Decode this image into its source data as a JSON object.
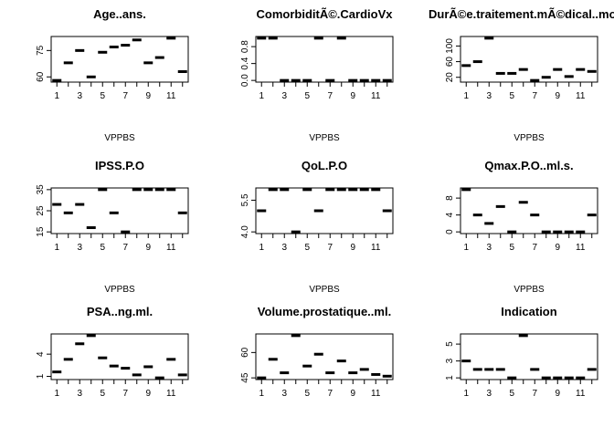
{
  "chart_data": [
    {
      "type": "scatter",
      "title": "Age..ans.",
      "xlabel": "VPPBS",
      "ylabel": "",
      "x": [
        1,
        2,
        3,
        4,
        5,
        6,
        7,
        8,
        9,
        10,
        11,
        12
      ],
      "values": [
        58,
        68,
        75,
        60,
        74,
        77,
        78,
        81,
        68,
        71,
        82,
        63
      ],
      "xlim": [
        0.5,
        12.5
      ],
      "ylim": [
        58,
        82
      ],
      "xticks": [
        1,
        3,
        5,
        7,
        9,
        11
      ],
      "yticks": [
        60,
        75
      ]
    },
    {
      "type": "scatter",
      "title": "ComorbiditÃ©.CardioVx",
      "xlabel": "VPPBS",
      "ylabel": "",
      "x": [
        1,
        2,
        3,
        4,
        5,
        6,
        7,
        8,
        9,
        10,
        11,
        12
      ],
      "values": [
        1,
        1,
        0,
        0,
        0,
        1,
        0,
        1,
        0,
        0,
        0,
        0
      ],
      "xlim": [
        0.5,
        12.5
      ],
      "ylim": [
        0,
        1
      ],
      "xticks": [
        1,
        3,
        5,
        7,
        9,
        11
      ],
      "yticks": [
        0.0,
        0.4,
        0.8
      ]
    },
    {
      "type": "scatter",
      "title": "DurÃ©e.traitement.mÃ©dical..mois.",
      "xlabel": "VPPBS",
      "ylabel": "",
      "x": [
        1,
        2,
        3,
        4,
        5,
        6,
        7,
        8,
        9,
        10,
        11,
        12
      ],
      "values": [
        50,
        60,
        120,
        30,
        30,
        40,
        12,
        20,
        40,
        22,
        40,
        35
      ],
      "xlim": [
        0.5,
        12.5
      ],
      "ylim": [
        12,
        120
      ],
      "xticks": [
        1,
        3,
        5,
        7,
        9,
        11
      ],
      "yticks": [
        20,
        60,
        100
      ]
    },
    {
      "type": "scatter",
      "title": "IPSS.P.O",
      "xlabel": "VPPBS",
      "ylabel": "",
      "x": [
        1,
        2,
        3,
        4,
        5,
        6,
        7,
        8,
        9,
        10,
        11,
        12
      ],
      "values": [
        28,
        24,
        28,
        17,
        35,
        24,
        15,
        35,
        35,
        35,
        35,
        24
      ],
      "xlim": [
        0.5,
        12.5
      ],
      "ylim": [
        15,
        35
      ],
      "xticks": [
        1,
        3,
        5,
        7,
        9,
        11
      ],
      "yticks": [
        15,
        25,
        35
      ]
    },
    {
      "type": "scatter",
      "title": "QoL.P.O",
      "xlabel": "VPPBS",
      "ylabel": "",
      "x": [
        1,
        2,
        3,
        4,
        5,
        6,
        7,
        8,
        9,
        10,
        11,
        12
      ],
      "values": [
        5,
        6,
        6,
        4,
        6,
        5,
        6,
        6,
        6,
        6,
        6,
        5
      ],
      "xlim": [
        0.5,
        12.5
      ],
      "ylim": [
        4,
        6
      ],
      "xticks": [
        1,
        3,
        5,
        7,
        9,
        11
      ],
      "yticks": [
        4.0,
        5.5
      ]
    },
    {
      "type": "scatter",
      "title": "Qmax.P.O..ml.s.",
      "xlabel": "VPPBS",
      "ylabel": "",
      "x": [
        1,
        2,
        3,
        4,
        5,
        6,
        7,
        8,
        9,
        10,
        11,
        12
      ],
      "values": [
        10,
        4,
        2,
        6,
        0,
        7,
        4,
        0,
        0,
        0,
        0,
        4
      ],
      "xlim": [
        0.5,
        12.5
      ],
      "ylim": [
        0,
        10
      ],
      "xticks": [
        1,
        3,
        5,
        7,
        9,
        11
      ],
      "yticks": [
        0,
        4,
        8
      ]
    },
    {
      "type": "scatter",
      "title": "PSA..ng.ml.",
      "xlabel": "VPPBS",
      "ylabel": "",
      "x": [
        1,
        2,
        3,
        4,
        5,
        6,
        7,
        8,
        9,
        10,
        11,
        12
      ],
      "values": [
        1.6,
        3.3,
        5.4,
        6.5,
        3.5,
        2.4,
        2.1,
        1.2,
        2.3,
        0.8,
        3.3,
        1.2
      ],
      "xlim": [
        0.5,
        12.5
      ],
      "ylim": [
        0.8,
        6.5
      ],
      "xticks": [
        1,
        3,
        5,
        7,
        9,
        11
      ],
      "yticks": [
        1,
        4
      ]
    },
    {
      "type": "scatter",
      "title": "Volume.prostatique..ml.",
      "xlabel": "VPPBS",
      "ylabel": "",
      "x": [
        1,
        2,
        3,
        4,
        5,
        6,
        7,
        8,
        9,
        10,
        11,
        12
      ],
      "values": [
        45,
        56,
        48,
        70,
        52,
        59,
        48,
        55,
        48,
        50,
        47,
        46
      ],
      "xlim": [
        0.5,
        12.5
      ],
      "ylim": [
        45,
        70
      ],
      "xticks": [
        1,
        3,
        5,
        7,
        9,
        11
      ],
      "yticks": [
        45,
        60
      ]
    },
    {
      "type": "scatter",
      "title": "Indication",
      "xlabel": "VPPBS",
      "ylabel": "",
      "x": [
        1,
        2,
        3,
        4,
        5,
        6,
        7,
        8,
        9,
        10,
        11,
        12
      ],
      "values": [
        3,
        2,
        2,
        2,
        1,
        6,
        2,
        1,
        1,
        1,
        1,
        2
      ],
      "xlim": [
        0.5,
        12.5
      ],
      "ylim": [
        1,
        6
      ],
      "xticks": [
        1,
        3,
        5,
        7,
        9,
        11
      ],
      "yticks": [
        1,
        3,
        5
      ]
    }
  ]
}
